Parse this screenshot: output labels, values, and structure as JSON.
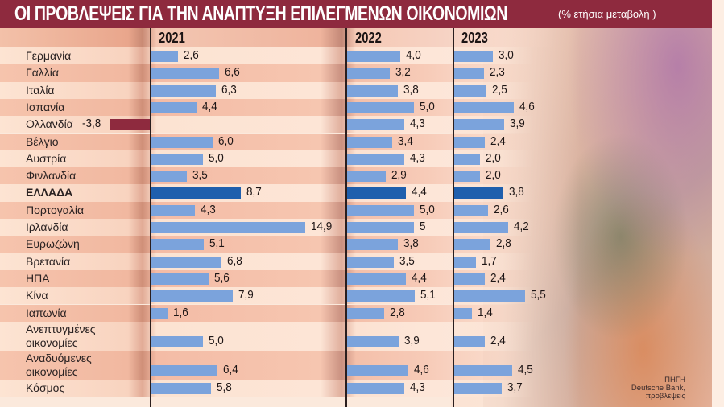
{
  "header": {
    "title": "ΟΙ ΠΡΟΒΛΕΨΕΙΣ ΓΙΑ ΤΗΝ ΑΝΑΠΤΥΞΗ ΕΠΙΛΕΓΜΕΝΩΝ ΟΙΚΟΝΟΜΙΩΝ",
    "subtitle": "(% ετήσια μεταβολή )"
  },
  "years": [
    "2021",
    "2022",
    "2023"
  ],
  "source": {
    "line1": "ΠΗΓΗ",
    "line2": "Deutsche Bank,",
    "line3": "προβλέψεις"
  },
  "colors": {
    "title_bg": "#8e2a3e",
    "bar": "#7ba3dc",
    "bar_highlight": "#1f5fad",
    "bar_negative": "#8e2a3e"
  },
  "chart_data": {
    "type": "bar",
    "orientation": "horizontal",
    "title": "ΟΙ ΠΡΟΒΛΕΨΕΙΣ ΓΙΑ ΤΗΝ ΑΝΑΠΤΥΞΗ ΕΠΙΛΕΓΜΕΝΩΝ ΟΙΚΟΝΟΜΙΩΝ",
    "subtitle": "(% ετήσια μεταβολή )",
    "xlabel": "",
    "ylabel": "",
    "grid": false,
    "legend": "none (year column headers)",
    "highlighted_category": "ΕΛΛΑΔΑ",
    "categories": [
      "Γερμανία",
      "Γαλλία",
      "Ιταλία",
      "Ισπανία",
      "Ολλανδία",
      "Βέλγιο",
      "Αυστρία",
      "Φινλανδία",
      "ΕΛΛΑΔΑ",
      "Πορτογαλία",
      "Ιρλανδία",
      "Ευρωζώνη",
      "Βρετανία",
      "ΗΠΑ",
      "Κίνα",
      "Ιαπωνία",
      "Ανεπτυγμένες οικονομίες",
      "Αναδυόμενες οικονομίες",
      "Κόσμος"
    ],
    "series": [
      {
        "name": "2021",
        "values": [
          2.6,
          6.6,
          6.3,
          4.4,
          -3.8,
          6.0,
          5.0,
          3.5,
          8.7,
          4.3,
          14.9,
          5.1,
          6.8,
          5.6,
          7.9,
          1.6,
          5.0,
          6.4,
          5.8
        ],
        "labels": [
          "2,6",
          "6,6",
          "6,3",
          "4,4",
          "-3,8",
          "6,0",
          "5,0",
          "3,5",
          "8,7",
          "4,3",
          "14,9",
          "5,1",
          "6,8",
          "5,6",
          "7,9",
          "1,6",
          "5,0",
          "6,4",
          "5,8"
        ]
      },
      {
        "name": "2022",
        "values": [
          4.0,
          3.2,
          3.8,
          5.0,
          4.3,
          3.4,
          4.3,
          2.9,
          4.4,
          5.0,
          5,
          3.8,
          3.5,
          4.4,
          5.1,
          2.8,
          3.9,
          4.6,
          4.3
        ],
        "labels": [
          "4,0",
          "3,2",
          "3,8",
          "5,0",
          "4,3",
          "3,4",
          "4,3",
          "2,9",
          "4,4",
          "5,0",
          "5",
          "3,8",
          "3,5",
          "4,4",
          "5,1",
          "2,8",
          "3,9",
          "4,6",
          "4,3"
        ]
      },
      {
        "name": "2023",
        "values": [
          3.0,
          2.3,
          2.5,
          4.6,
          3.9,
          2.4,
          2.0,
          2.0,
          3.8,
          2.6,
          4.2,
          2.8,
          1.7,
          2.4,
          5.5,
          1.4,
          2.4,
          4.5,
          3.7
        ],
        "labels": [
          "3,0",
          "2,3",
          "2,5",
          "4,6",
          "3,9",
          "2,4",
          "2,0",
          "2,0",
          "3,8",
          "2,6",
          "4,2",
          "2,8",
          "1,7",
          "2,4",
          "5,5",
          "1,4",
          "2,4",
          "4,5",
          "3,7"
        ]
      }
    ]
  },
  "rows": [
    {
      "label": "Γερμανία",
      "v": [
        "2,6",
        "4,0",
        "3,0"
      ]
    },
    {
      "label": "Γαλλία",
      "v": [
        "6,6",
        "3,2",
        "2,3"
      ]
    },
    {
      "label": "Ιταλία",
      "v": [
        "6,3",
        "3,8",
        "2,5"
      ]
    },
    {
      "label": "Ισπανία",
      "v": [
        "4,4",
        "5,0",
        "4,6"
      ]
    },
    {
      "label": "Ολλανδία",
      "v": [
        "-3,8",
        "4,3",
        "3,9"
      ]
    },
    {
      "label": "Βέλγιο",
      "v": [
        "6,0",
        "3,4",
        "2,4"
      ]
    },
    {
      "label": "Αυστρία",
      "v": [
        "5,0",
        "4,3",
        "2,0"
      ]
    },
    {
      "label": "Φινλανδία",
      "v": [
        "3,5",
        "2,9",
        "2,0"
      ]
    },
    {
      "label": "ΕΛΛΑΔΑ",
      "v": [
        "8,7",
        "4,4",
        "3,8"
      ]
    },
    {
      "label": "Πορτογαλία",
      "v": [
        "4,3",
        "5,0",
        "2,6"
      ]
    },
    {
      "label": "Ιρλανδία",
      "v": [
        "14,9",
        "5",
        "4,2"
      ]
    },
    {
      "label": "Ευρωζώνη",
      "v": [
        "5,1",
        "3,8",
        "2,8"
      ]
    },
    {
      "label": "Βρετανία",
      "v": [
        "6,8",
        "3,5",
        "1,7"
      ]
    },
    {
      "label": "ΗΠΑ",
      "v": [
        "5,6",
        "4,4",
        "2,4"
      ]
    },
    {
      "label": "Κίνα",
      "v": [
        "7,9",
        "5,1",
        "5,5"
      ]
    },
    {
      "label": "Ιαπωνία",
      "v": [
        "1,6",
        "2,8",
        "1,4"
      ]
    },
    {
      "label": "Ανεπτυγμένες",
      "label2": "οικονομίες",
      "v": [
        "5,0",
        "3,9",
        "2,4"
      ]
    },
    {
      "label": "Αναδυόμενες",
      "label2": "οικονομίες",
      "v": [
        "6,4",
        "4,6",
        "4,5"
      ]
    },
    {
      "label": "Κόσμος",
      "v": [
        "5,8",
        "4,3",
        "3,7"
      ]
    }
  ]
}
